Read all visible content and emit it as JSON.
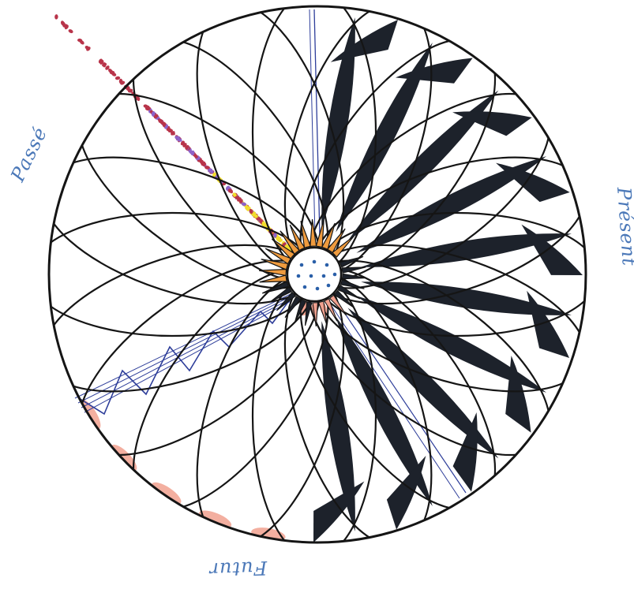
{
  "labels": {
    "passe": "Passé",
    "present": "Présent",
    "futur": "Futur"
  },
  "colors": {
    "paper": "#ffffff",
    "ink": "#151515",
    "dark_fill": "#1d222b",
    "red_dot": "#b8344a",
    "violet_dot": "#8d63c8",
    "yellow_dot": "#f2dd2c",
    "orange_star": "#ef9b3e",
    "salmon": "#f1a18f",
    "blue_pen": "#2e3e9a",
    "blue_dot": "#2a5fa8",
    "label_blue": "#4b78b8"
  }
}
